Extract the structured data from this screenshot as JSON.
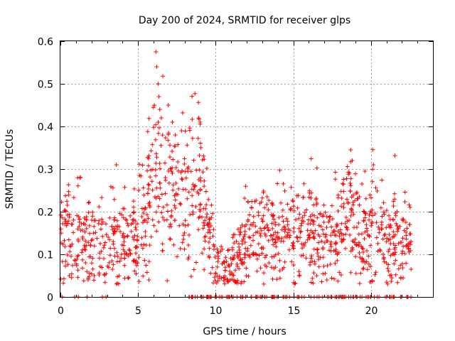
{
  "chart_data": {
    "type": "scatter",
    "title": "Day 200 of 2024, SRMTID for receiver glps",
    "xlabel": "GPS time / hours",
    "ylabel": "SRMTID / TECUs",
    "xlim": [
      0,
      24
    ],
    "ylim": [
      0,
      0.6
    ],
    "x_ticks": [
      "0",
      "5",
      "10",
      "15",
      "20"
    ],
    "x_tick_values": [
      0,
      5,
      10,
      15,
      20
    ],
    "y_ticks": [
      "0",
      "0.1",
      "0.2",
      "0.3",
      "0.4",
      "0.5",
      "0.6"
    ],
    "y_tick_values": [
      0,
      0.1,
      0.2,
      0.3,
      0.4,
      0.5,
      0.6
    ],
    "grid": true,
    "marker": "+",
    "color": "#ff0000",
    "series": [
      {
        "name": "SRMTID",
        "profile": [
          [
            0.0,
            0.15
          ],
          [
            0.5,
            0.17
          ],
          [
            1.0,
            0.16
          ],
          [
            1.5,
            0.13
          ],
          [
            2.0,
            0.13
          ],
          [
            2.5,
            0.12
          ],
          [
            3.0,
            0.13
          ],
          [
            3.5,
            0.14
          ],
          [
            4.0,
            0.13
          ],
          [
            4.5,
            0.14
          ],
          [
            5.0,
            0.16
          ],
          [
            5.5,
            0.2
          ],
          [
            6.0,
            0.27
          ],
          [
            6.5,
            0.27
          ],
          [
            7.0,
            0.27
          ],
          [
            7.5,
            0.24
          ],
          [
            8.0,
            0.23
          ],
          [
            8.5,
            0.24
          ],
          [
            9.0,
            0.27
          ],
          [
            9.5,
            0.17
          ],
          [
            10.0,
            0.08
          ],
          [
            10.5,
            0.06
          ],
          [
            11.0,
            0.07
          ],
          [
            11.5,
            0.11
          ],
          [
            12.0,
            0.14
          ],
          [
            12.5,
            0.15
          ],
          [
            13.0,
            0.14
          ],
          [
            13.5,
            0.14
          ],
          [
            14.0,
            0.15
          ],
          [
            14.5,
            0.15
          ],
          [
            15.0,
            0.15
          ],
          [
            15.5,
            0.15
          ],
          [
            16.0,
            0.15
          ],
          [
            16.5,
            0.15
          ],
          [
            17.0,
            0.14
          ],
          [
            17.5,
            0.14
          ],
          [
            18.0,
            0.15
          ],
          [
            18.5,
            0.19
          ],
          [
            19.0,
            0.16
          ],
          [
            19.5,
            0.13
          ],
          [
            20.0,
            0.18
          ],
          [
            20.5,
            0.17
          ],
          [
            21.0,
            0.14
          ],
          [
            21.5,
            0.15
          ],
          [
            22.0,
            0.14
          ],
          [
            22.6,
            0.12
          ]
        ],
        "peaks": [
          [
            6.15,
            0.575
          ],
          [
            6.2,
            0.54
          ],
          [
            6.3,
            0.5
          ],
          [
            6.35,
            0.47
          ],
          [
            6.4,
            0.44
          ],
          [
            6.5,
            0.42
          ],
          [
            6.95,
            0.45
          ],
          [
            6.3,
            0.41
          ],
          [
            8.9,
            0.42
          ],
          [
            9.0,
            0.41
          ],
          [
            7.4,
            0.38
          ],
          [
            7.8,
            0.39
          ],
          [
            18.7,
            0.345
          ],
          [
            18.8,
            0.32
          ],
          [
            3.6,
            0.31
          ]
        ],
        "zeros_range_a": [
          0.0,
          3.6
        ],
        "zeros_range_b": [
          8.0,
          22.6
        ],
        "x_range": [
          0.0,
          22.6
        ]
      }
    ]
  }
}
